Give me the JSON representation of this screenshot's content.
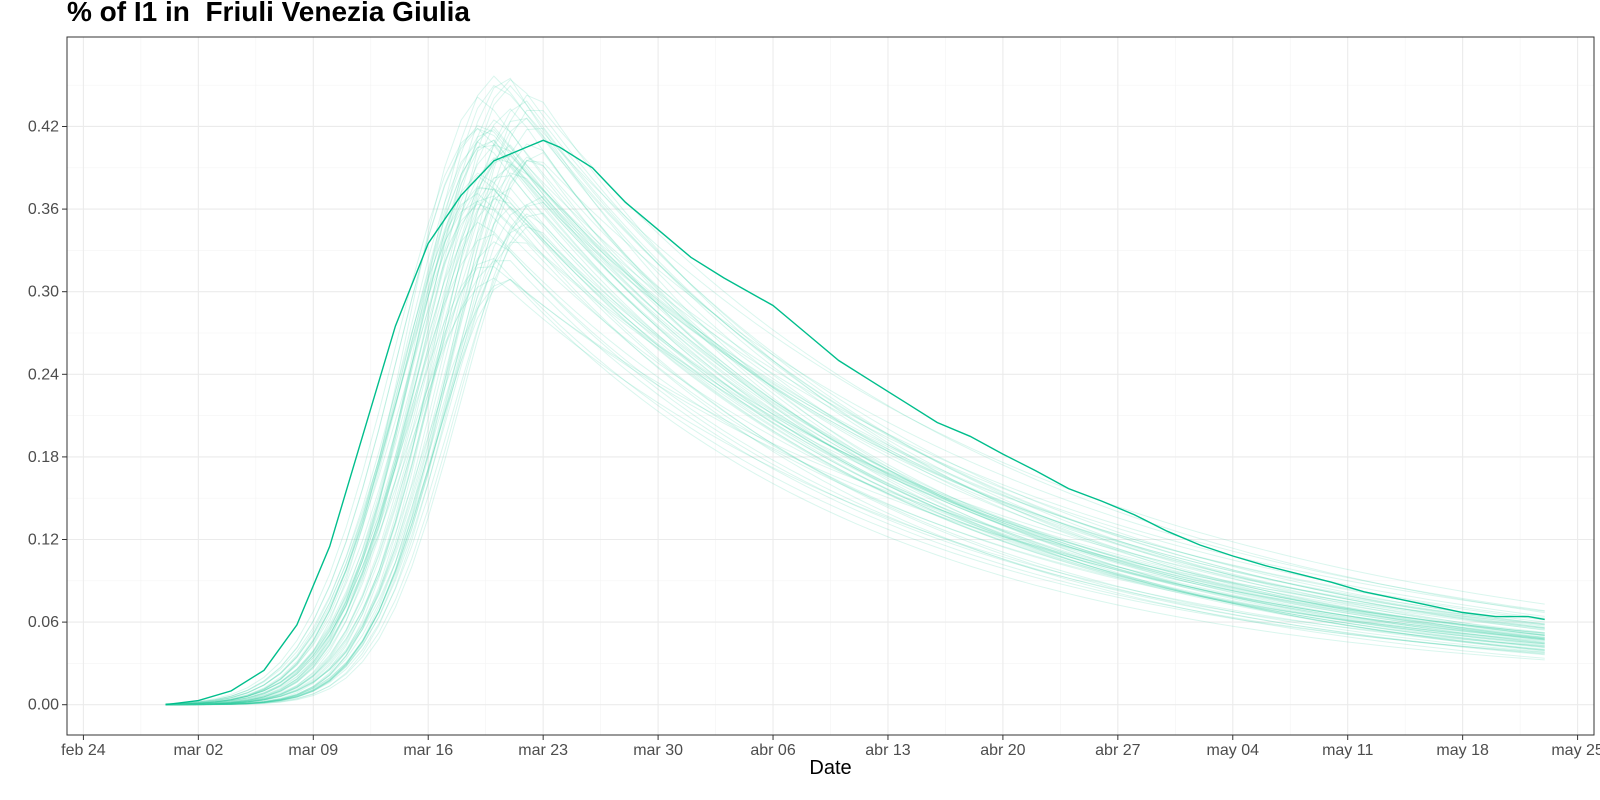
{
  "chart_data": {
    "type": "line",
    "title": "% of I1 in  Friuli Venezia Giulia",
    "xlabel": "Date",
    "ylabel": "",
    "x_start": "2020-02-29",
    "x_end": "2020-05-23",
    "xlim": [
      "2020-02-23",
      "2020-05-26"
    ],
    "ylim": [
      -0.022,
      0.485
    ],
    "y_ticks": [
      0.0,
      0.06,
      0.12,
      0.18,
      0.24,
      0.3,
      0.36,
      0.42
    ],
    "y_tick_labels": [
      "0.00",
      "0.06",
      "0.12",
      "0.18",
      "0.24",
      "0.30",
      "0.36",
      "0.42"
    ],
    "x_ticks": [
      "2020-02-24",
      "2020-03-02",
      "2020-03-09",
      "2020-03-16",
      "2020-03-23",
      "2020-03-30",
      "2020-04-06",
      "2020-04-13",
      "2020-04-20",
      "2020-04-27",
      "2020-05-04",
      "2020-05-11",
      "2020-05-18",
      "2020-05-25"
    ],
    "x_tick_labels": [
      "feb 24",
      "mar 02",
      "mar 09",
      "mar 16",
      "mar 23",
      "mar 30",
      "abr 06",
      "abr 13",
      "abr 20",
      "abr 27",
      "may 04",
      "may 11",
      "may 18",
      "may 25"
    ],
    "grid": true,
    "legend": "none",
    "colors": {
      "main": "#00BE8C",
      "sims": "#33CBA0"
    },
    "main_series": {
      "x": [
        "2020-02-29",
        "2020-03-02",
        "2020-03-04",
        "2020-03-06",
        "2020-03-08",
        "2020-03-10",
        "2020-03-12",
        "2020-03-14",
        "2020-03-16",
        "2020-03-18",
        "2020-03-20",
        "2020-03-22",
        "2020-03-23",
        "2020-03-24",
        "2020-03-26",
        "2020-03-28",
        "2020-03-30",
        "2020-04-01",
        "2020-04-03",
        "2020-04-06",
        "2020-04-08",
        "2020-04-10",
        "2020-04-12",
        "2020-04-14",
        "2020-04-16",
        "2020-04-18",
        "2020-04-20",
        "2020-04-22",
        "2020-04-24",
        "2020-04-26",
        "2020-04-28",
        "2020-04-30",
        "2020-05-02",
        "2020-05-04",
        "2020-05-06",
        "2020-05-08",
        "2020-05-10",
        "2020-05-12",
        "2020-05-14",
        "2020-05-16",
        "2020-05-18",
        "2020-05-20",
        "2020-05-22",
        "2020-05-23"
      ],
      "values": [
        0.0,
        0.003,
        0.01,
        0.025,
        0.058,
        0.115,
        0.195,
        0.275,
        0.335,
        0.37,
        0.395,
        0.405,
        0.41,
        0.405,
        0.39,
        0.365,
        0.345,
        0.325,
        0.31,
        0.29,
        0.27,
        0.25,
        0.235,
        0.22,
        0.205,
        0.195,
        0.182,
        0.17,
        0.157,
        0.148,
        0.138,
        0.126,
        0.116,
        0.108,
        0.101,
        0.095,
        0.089,
        0.082,
        0.077,
        0.072,
        0.067,
        0.064,
        0.064,
        0.062
      ]
    },
    "simulation_peaks": [
      0.31,
      0.325,
      0.34,
      0.35,
      0.36,
      0.365,
      0.37,
      0.375,
      0.38,
      0.385,
      0.39,
      0.395,
      0.4,
      0.405,
      0.41,
      0.415,
      0.42,
      0.425,
      0.43,
      0.44,
      0.45,
      0.46
    ]
  }
}
